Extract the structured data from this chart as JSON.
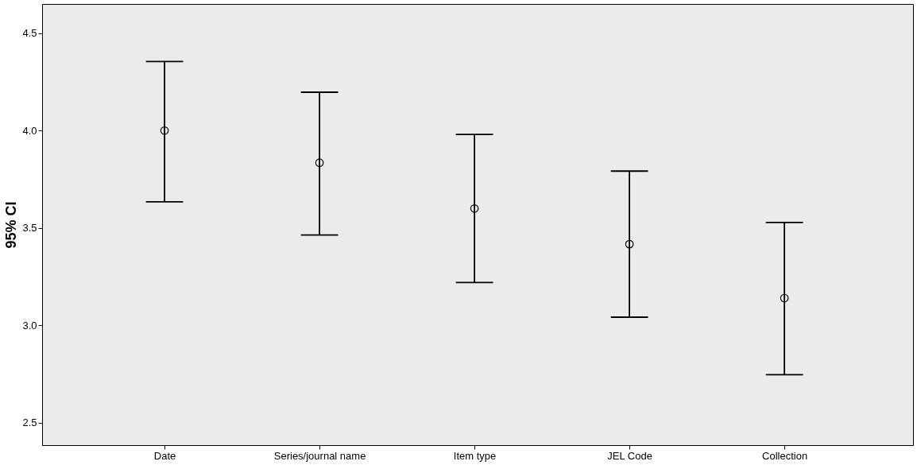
{
  "chart_data": {
    "type": "scatter",
    "ylabel": "95% CI",
    "categories": [
      "Date",
      "Series/journal name",
      "Item type",
      "JEL Code",
      "Collection"
    ],
    "series": [
      {
        "color": "#000000",
        "values": [
          4.0,
          3.835,
          3.6,
          3.417,
          3.14
        ],
        "errors": [
          [
            3.634,
            4.355
          ],
          [
            3.464,
            4.197
          ],
          [
            3.22,
            3.98
          ],
          [
            3.042,
            3.792
          ],
          [
            2.747,
            3.528
          ]
        ]
      }
    ],
    "ylim": [
      2.385,
      4.65
    ],
    "yticks": [
      2.5,
      {
        "value": 3,
        "label": "3.0"
      },
      3.5,
      {
        "value": 4,
        "label": "4.0"
      },
      4.5
    ],
    "grid": false,
    "marker": "circle"
  }
}
